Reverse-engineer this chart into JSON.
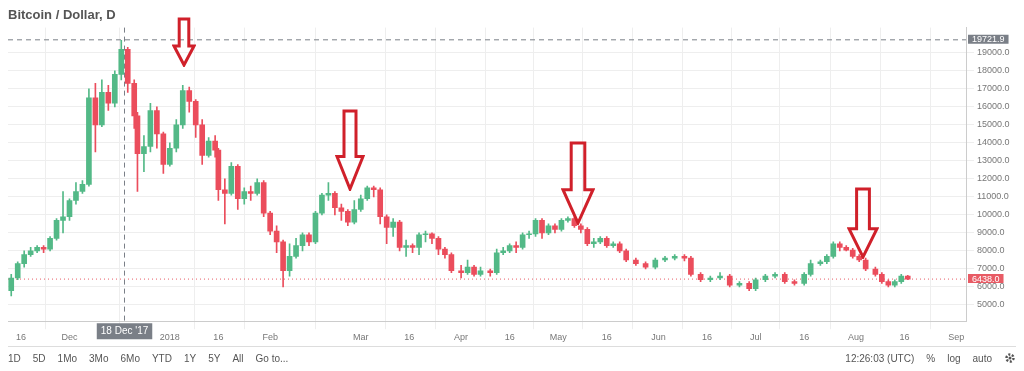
{
  "chart_data": {
    "type": "candlestick",
    "title": "Bitcoin / Dollar, D",
    "x": [
      "2017-11-13",
      "2017-11-15",
      "2017-11-17",
      "2017-11-19",
      "2017-11-21",
      "2017-11-23",
      "2017-11-25",
      "2017-11-27",
      "2017-11-29",
      "2017-12-01",
      "2017-12-03",
      "2017-12-05",
      "2017-12-07",
      "2017-12-09",
      "2017-12-11",
      "2017-12-13",
      "2017-12-15",
      "2017-12-17",
      "2017-12-19",
      "2017-12-21",
      "2017-12-22",
      "2017-12-24",
      "2017-12-26",
      "2017-12-28",
      "2017-12-30",
      "2018-01-01",
      "2018-01-03",
      "2018-01-05",
      "2018-01-07",
      "2018-01-09",
      "2018-01-11",
      "2018-01-13",
      "2018-01-15",
      "2018-01-16",
      "2018-01-18",
      "2018-01-20",
      "2018-01-22",
      "2018-01-24",
      "2018-01-26",
      "2018-01-28",
      "2018-01-30",
      "2018-02-01",
      "2018-02-03",
      "2018-02-05",
      "2018-02-07",
      "2018-02-09",
      "2018-02-11",
      "2018-02-13",
      "2018-02-15",
      "2018-02-17",
      "2018-02-19",
      "2018-02-21",
      "2018-02-23",
      "2018-02-25",
      "2018-02-27",
      "2018-03-01",
      "2018-03-03",
      "2018-03-05",
      "2018-03-07",
      "2018-03-09",
      "2018-03-11",
      "2018-03-13",
      "2018-03-15",
      "2018-03-17",
      "2018-03-19",
      "2018-03-21",
      "2018-03-23",
      "2018-03-25",
      "2018-03-27",
      "2018-03-29",
      "2018-04-01",
      "2018-04-03",
      "2018-04-05",
      "2018-04-07",
      "2018-04-10",
      "2018-04-12",
      "2018-04-14",
      "2018-04-16",
      "2018-04-18",
      "2018-04-20",
      "2018-04-22",
      "2018-04-24",
      "2018-04-26",
      "2018-04-28",
      "2018-04-30",
      "2018-05-02",
      "2018-05-04",
      "2018-05-06",
      "2018-05-08",
      "2018-05-10",
      "2018-05-12",
      "2018-05-14",
      "2018-05-16",
      "2018-05-18",
      "2018-05-20",
      "2018-05-22",
      "2018-05-25",
      "2018-05-28",
      "2018-05-31",
      "2018-06-03",
      "2018-06-06",
      "2018-06-09",
      "2018-06-11",
      "2018-06-14",
      "2018-06-17",
      "2018-06-20",
      "2018-06-23",
      "2018-06-26",
      "2018-06-29",
      "2018-07-01",
      "2018-07-04",
      "2018-07-07",
      "2018-07-10",
      "2018-07-13",
      "2018-07-16",
      "2018-07-18",
      "2018-07-21",
      "2018-07-23",
      "2018-07-25",
      "2018-07-27",
      "2018-07-29",
      "2018-07-31",
      "2018-08-02",
      "2018-08-04",
      "2018-08-07",
      "2018-08-09",
      "2018-08-11",
      "2018-08-13",
      "2018-08-15",
      "2018-08-17"
    ],
    "ohlc": [
      [
        5800,
        6700,
        5500,
        6500
      ],
      [
        6500,
        7400,
        6400,
        7300
      ],
      [
        7300,
        8000,
        7100,
        7800
      ],
      [
        7800,
        8200,
        7700,
        8000
      ],
      [
        8000,
        8300,
        7900,
        8200
      ],
      [
        8200,
        8300,
        7900,
        8100
      ],
      [
        8100,
        8800,
        8000,
        8700
      ],
      [
        8700,
        9800,
        8600,
        9700
      ],
      [
        9700,
        11300,
        9000,
        9900
      ],
      [
        9900,
        10900,
        9700,
        10800
      ],
      [
        10800,
        11800,
        10600,
        11300
      ],
      [
        11300,
        11900,
        11200,
        11700
      ],
      [
        11700,
        17000,
        11600,
        16500
      ],
      [
        16500,
        17300,
        13500,
        15000
      ],
      [
        15000,
        17500,
        14900,
        16800
      ],
      [
        16800,
        17200,
        15800,
        16200
      ],
      [
        16200,
        18000,
        16000,
        17800
      ],
      [
        17800,
        19700,
        17500,
        19200
      ],
      [
        19200,
        19300,
        16800,
        17300
      ],
      [
        17300,
        17500,
        14800,
        15500
      ],
      [
        15500,
        15700,
        11300,
        13400
      ],
      [
        13400,
        14400,
        12400,
        13800
      ],
      [
        13800,
        16200,
        13500,
        15800
      ],
      [
        15800,
        16000,
        13700,
        14500
      ],
      [
        14500,
        14600,
        12300,
        12800
      ],
      [
        12800,
        14000,
        12700,
        13700
      ],
      [
        13700,
        15300,
        13500,
        15000
      ],
      [
        15000,
        17200,
        14800,
        16900
      ],
      [
        16900,
        17100,
        15700,
        16300
      ],
      [
        16300,
        16400,
        14300,
        15000
      ],
      [
        15000,
        15300,
        12800,
        13300
      ],
      [
        13300,
        14300,
        13200,
        14100
      ],
      [
        14100,
        14400,
        13200,
        13600
      ],
      [
        13600,
        13700,
        10800,
        11400
      ],
      [
        11400,
        12000,
        9500,
        11200
      ],
      [
        11200,
        12900,
        11100,
        12700
      ],
      [
        12700,
        12800,
        10300,
        10900
      ],
      [
        10900,
        11500,
        10600,
        11300
      ],
      [
        11300,
        11600,
        10800,
        11200
      ],
      [
        11200,
        12000,
        11100,
        11800
      ],
      [
        11800,
        11900,
        9900,
        10100
      ],
      [
        10100,
        10200,
        8900,
        9100
      ],
      [
        9100,
        9400,
        7900,
        8500
      ],
      [
        8500,
        8600,
        6000,
        6900
      ],
      [
        6900,
        8400,
        6600,
        7700
      ],
      [
        7700,
        8700,
        7600,
        8300
      ],
      [
        8300,
        9000,
        8000,
        8900
      ],
      [
        8900,
        9000,
        8300,
        8500
      ],
      [
        8500,
        10200,
        8400,
        10100
      ],
      [
        10100,
        11200,
        10000,
        11100
      ],
      [
        11100,
        11800,
        10800,
        11200
      ],
      [
        11200,
        11300,
        10000,
        10400
      ],
      [
        10400,
        10600,
        9700,
        10200
      ],
      [
        10200,
        10300,
        9400,
        9600
      ],
      [
        9600,
        10800,
        9500,
        10300
      ],
      [
        10300,
        11100,
        10200,
        10900
      ],
      [
        10900,
        11600,
        10800,
        11500
      ],
      [
        11500,
        11600,
        11000,
        11400
      ],
      [
        11400,
        11500,
        9500,
        9900
      ],
      [
        9900,
        10000,
        8400,
        9300
      ],
      [
        9300,
        9800,
        8800,
        9600
      ],
      [
        9600,
        9700,
        8000,
        8200
      ],
      [
        8200,
        8600,
        7700,
        8300
      ],
      [
        8300,
        8400,
        7900,
        8200
      ],
      [
        8200,
        9000,
        7800,
        8900
      ],
      [
        8900,
        9100,
        8500,
        8950
      ],
      [
        8950,
        9000,
        8400,
        8700
      ],
      [
        8700,
        8800,
        7800,
        8100
      ],
      [
        8100,
        8200,
        7600,
        7800
      ],
      [
        7800,
        7900,
        6800,
        6900
      ],
      [
        6900,
        7200,
        6500,
        6800
      ],
      [
        6800,
        7500,
        6700,
        7100
      ],
      [
        7100,
        7200,
        6600,
        6700
      ],
      [
        6700,
        7100,
        6600,
        6900
      ],
      [
        6900,
        7000,
        6600,
        6800
      ],
      [
        6800,
        8100,
        6700,
        7900
      ],
      [
        7900,
        8200,
        7800,
        8000
      ],
      [
        8000,
        8400,
        7900,
        8300
      ],
      [
        8300,
        8500,
        7900,
        8200
      ],
      [
        8200,
        9000,
        8100,
        8900
      ],
      [
        8900,
        9100,
        8700,
        8950
      ],
      [
        8950,
        9800,
        8800,
        9700
      ],
      [
        9700,
        9800,
        8700,
        9000
      ],
      [
        9000,
        9500,
        8900,
        9400
      ],
      [
        9400,
        9500,
        9000,
        9200
      ],
      [
        9200,
        9800,
        9100,
        9700
      ],
      [
        9700,
        9900,
        9600,
        9800
      ],
      [
        9800,
        9900,
        9300,
        9400
      ],
      [
        9400,
        9500,
        9000,
        9200
      ],
      [
        9200,
        9300,
        8300,
        8400
      ],
      [
        8400,
        8700,
        8200,
        8500
      ],
      [
        8500,
        8800,
        8400,
        8700
      ],
      [
        8700,
        8800,
        8200,
        8300
      ],
      [
        8300,
        8500,
        8200,
        8400
      ],
      [
        8400,
        8500,
        7900,
        8000
      ],
      [
        8000,
        8100,
        7400,
        7500
      ],
      [
        7500,
        7600,
        7200,
        7300
      ],
      [
        7300,
        7400,
        7000,
        7100
      ],
      [
        7100,
        7600,
        7000,
        7500
      ],
      [
        7500,
        7700,
        7400,
        7600
      ],
      [
        7600,
        7800,
        7500,
        7700
      ],
      [
        7700,
        7800,
        7450,
        7600
      ],
      [
        7600,
        7700,
        6600,
        6700
      ],
      [
        6700,
        6800,
        6300,
        6400
      ],
      [
        6400,
        6600,
        6300,
        6500
      ],
      [
        6500,
        6800,
        6400,
        6600
      ],
      [
        6600,
        6700,
        6000,
        6100
      ],
      [
        6100,
        6300,
        6000,
        6200
      ],
      [
        6200,
        6300,
        5800,
        5900
      ],
      [
        5900,
        6500,
        5800,
        6400
      ],
      [
        6400,
        6700,
        6300,
        6600
      ],
      [
        6600,
        6800,
        6500,
        6700
      ],
      [
        6700,
        6800,
        6200,
        6300
      ],
      [
        6300,
        6400,
        6100,
        6200
      ],
      [
        6200,
        6800,
        6100,
        6700
      ],
      [
        6700,
        7500,
        6600,
        7300
      ],
      [
        7300,
        7500,
        7200,
        7400
      ],
      [
        7400,
        7800,
        7300,
        7700
      ],
      [
        7700,
        8500,
        7600,
        8400
      ],
      [
        8400,
        8500,
        8000,
        8200
      ],
      [
        8200,
        8300,
        8000,
        8050
      ],
      [
        8050,
        8150,
        7600,
        7700
      ],
      [
        7700,
        7800,
        7400,
        7500
      ],
      [
        7500,
        7600,
        6900,
        7000
      ],
      [
        7000,
        7100,
        6600,
        6700
      ],
      [
        6700,
        6800,
        6200,
        6300
      ],
      [
        6300,
        6400,
        6000,
        6100
      ],
      [
        6100,
        6400,
        6000,
        6300
      ],
      [
        6300,
        6700,
        6200,
        6600
      ],
      [
        6600,
        6650,
        6400,
        6438
      ]
    ],
    "colors": [
      "#53b987",
      "#53b987",
      "#53b987",
      "#53b987",
      "#53b987",
      "#eb4d5c",
      "#53b987",
      "#53b987",
      "#53b987",
      "#53b987",
      "#53b987",
      "#53b987",
      "#53b987",
      "#eb4d5c",
      "#53b987",
      "#eb4d5c",
      "#53b987",
      "#53b987",
      "#eb4d5c",
      "#eb4d5c",
      "#eb4d5c",
      "#53b987",
      "#53b987",
      "#eb4d5c",
      "#eb4d5c",
      "#53b987",
      "#53b987",
      "#53b987",
      "#eb4d5c",
      "#eb4d5c",
      "#eb4d5c",
      "#53b987",
      "#eb4d5c",
      "#eb4d5c",
      "#eb4d5c",
      "#53b987",
      "#eb4d5c",
      "#53b987",
      "#eb4d5c",
      "#53b987",
      "#eb4d5c",
      "#eb4d5c",
      "#eb4d5c",
      "#eb4d5c",
      "#53b987",
      "#53b987",
      "#53b987",
      "#eb4d5c",
      "#53b987",
      "#53b987",
      "#53b987",
      "#eb4d5c",
      "#eb4d5c",
      "#eb4d5c",
      "#53b987",
      "#53b987",
      "#53b987",
      "#eb4d5c",
      "#eb4d5c",
      "#eb4d5c",
      "#53b987",
      "#eb4d5c",
      "#53b987",
      "#eb4d5c",
      "#53b987",
      "#53b987",
      "#eb4d5c",
      "#eb4d5c",
      "#eb4d5c",
      "#eb4d5c",
      "#eb4d5c",
      "#53b987",
      "#eb4d5c",
      "#53b987",
      "#eb4d5c",
      "#53b987",
      "#53b987",
      "#53b987",
      "#eb4d5c",
      "#53b987",
      "#53b987",
      "#53b987",
      "#eb4d5c",
      "#53b987",
      "#eb4d5c",
      "#53b987",
      "#53b987",
      "#eb4d5c",
      "#eb4d5c",
      "#eb4d5c",
      "#53b987",
      "#53b987",
      "#eb4d5c",
      "#53b987",
      "#eb4d5c",
      "#eb4d5c",
      "#eb4d5c",
      "#eb4d5c",
      "#53b987",
      "#53b987",
      "#53b987",
      "#eb4d5c",
      "#eb4d5c",
      "#eb4d5c",
      "#53b987",
      "#53b987",
      "#eb4d5c",
      "#53b987",
      "#eb4d5c",
      "#53b987",
      "#53b987",
      "#53b987",
      "#eb4d5c",
      "#eb4d5c",
      "#53b987",
      "#53b987",
      "#53b987",
      "#53b987",
      "#53b987",
      "#eb4d5c",
      "#eb4d5c",
      "#eb4d5c",
      "#eb4d5c",
      "#eb4d5c",
      "#eb4d5c",
      "#eb4d5c",
      "#eb4d5c",
      "#53b987",
      "#53b987",
      "#eb4d5c"
    ],
    "xlim": [
      "2017-11-12",
      "2018-09-04"
    ],
    "xticks": [
      {
        "value": "2017-11-16",
        "label": "16"
      },
      {
        "value": "2017-12-01",
        "label": "Dec"
      },
      {
        "value": "2018-01-01",
        "label": "2018"
      },
      {
        "value": "2018-01-16",
        "label": "16"
      },
      {
        "value": "2018-02-01",
        "label": "Feb"
      },
      {
        "value": "2018-03-01",
        "label": "Mar"
      },
      {
        "value": "2018-03-16",
        "label": "16"
      },
      {
        "value": "2018-04-01",
        "label": "Apr"
      },
      {
        "value": "2018-04-16",
        "label": "16"
      },
      {
        "value": "2018-05-01",
        "label": "May"
      },
      {
        "value": "2018-05-16",
        "label": "16"
      },
      {
        "value": "2018-06-01",
        "label": "Jun"
      },
      {
        "value": "2018-06-16",
        "label": "16"
      },
      {
        "value": "2018-07-01",
        "label": "Jul"
      },
      {
        "value": "2018-07-16",
        "label": "16"
      },
      {
        "value": "2018-08-01",
        "label": "Aug"
      },
      {
        "value": "2018-08-16",
        "label": "16"
      },
      {
        "value": "2018-09-01",
        "label": "Sep"
      }
    ],
    "ylim": [
      4100,
      20400
    ],
    "yticks": [
      {
        "value": 5000,
        "label": "5000.0"
      },
      {
        "value": 6000,
        "label": "6000.0"
      },
      {
        "value": 7000,
        "label": "7000.0"
      },
      {
        "value": 8000,
        "label": "8000.0"
      },
      {
        "value": 9000,
        "label": "9000.0"
      },
      {
        "value": 10000,
        "label": "10000.0"
      },
      {
        "value": 11000,
        "label": "11000.0"
      },
      {
        "value": 12000,
        "label": "12000.0"
      },
      {
        "value": 13000,
        "label": "13000.0"
      },
      {
        "value": 14000,
        "label": "14000.0"
      },
      {
        "value": 15000,
        "label": "15000.0"
      },
      {
        "value": 16000,
        "label": "16000.0"
      },
      {
        "value": 17000,
        "label": "17000.0"
      },
      {
        "value": 18000,
        "label": "18000.0"
      },
      {
        "value": 19000,
        "label": "19000.0"
      }
    ],
    "grid": true,
    "ref_lines": [
      {
        "axis": "y",
        "value": 6438,
        "label": "6438.0",
        "color": "#e85b65",
        "line_style": "dotted"
      },
      {
        "axis": "y",
        "value": 19721.9,
        "label": "19721.9",
        "color": "#7a7f87",
        "line_style": "dashed"
      },
      {
        "axis": "x",
        "value": "2017-12-18",
        "label": "18 Dec '17",
        "color": "#7a7f87",
        "line_style": "dashed"
      }
    ],
    "annotations": [
      "1D",
      "5D",
      "1Mo",
      "3Mo",
      "6Mo",
      "YTD",
      "1Y",
      "5Y",
      "All",
      "Go to...",
      "12:26:03 (UTC)",
      "%",
      "log",
      "auto"
    ]
  }
}
